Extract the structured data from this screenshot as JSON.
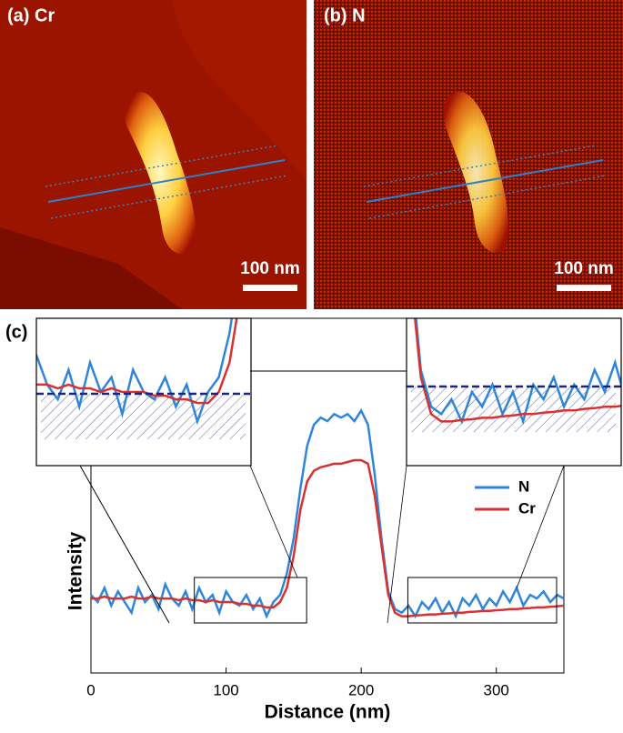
{
  "panels": [
    {
      "label": "(a) Cr",
      "scale_bar": "100 nm"
    },
    {
      "label": "(b) N",
      "scale_bar": "100 nm"
    },
    {
      "label": "(c)"
    }
  ],
  "chart_data": {
    "type": "line",
    "xlabel": "Distance (nm)",
    "ylabel": "Intensity",
    "xlim": [
      0,
      350
    ],
    "xticks": [
      0,
      100,
      200,
      300
    ],
    "ylim": [
      0,
      1
    ],
    "x": [
      0,
      5,
      10,
      15,
      20,
      25,
      30,
      35,
      40,
      45,
      50,
      55,
      60,
      65,
      70,
      75,
      80,
      85,
      90,
      95,
      100,
      105,
      110,
      115,
      120,
      125,
      130,
      135,
      140,
      145,
      150,
      155,
      160,
      165,
      170,
      175,
      180,
      185,
      190,
      195,
      200,
      205,
      210,
      215,
      220,
      225,
      230,
      235,
      240,
      245,
      250,
      255,
      260,
      265,
      270,
      275,
      280,
      285,
      290,
      295,
      300,
      305,
      310,
      315,
      320,
      325,
      330,
      335,
      340,
      345,
      350
    ],
    "series": [
      {
        "name": "N",
        "color": "#2f86d8",
        "values": [
          0.22,
          0.2,
          0.24,
          0.19,
          0.23,
          0.2,
          0.17,
          0.24,
          0.2,
          0.22,
          0.18,
          0.25,
          0.21,
          0.19,
          0.23,
          0.18,
          0.24,
          0.2,
          0.22,
          0.17,
          0.23,
          0.2,
          0.19,
          0.22,
          0.18,
          0.21,
          0.16,
          0.2,
          0.22,
          0.28,
          0.38,
          0.52,
          0.64,
          0.7,
          0.72,
          0.71,
          0.73,
          0.72,
          0.73,
          0.71,
          0.74,
          0.7,
          0.56,
          0.38,
          0.23,
          0.18,
          0.17,
          0.19,
          0.16,
          0.2,
          0.18,
          0.21,
          0.17,
          0.2,
          0.16,
          0.21,
          0.19,
          0.22,
          0.18,
          0.21,
          0.19,
          0.23,
          0.2,
          0.24,
          0.19,
          0.22,
          0.21,
          0.23,
          0.2,
          0.22,
          0.21
        ]
      },
      {
        "name": "Cr",
        "color": "#d93030",
        "values": [
          0.21,
          0.21,
          0.215,
          0.21,
          0.21,
          0.21,
          0.215,
          0.21,
          0.21,
          0.215,
          0.21,
          0.21,
          0.21,
          0.205,
          0.21,
          0.205,
          0.205,
          0.2,
          0.205,
          0.2,
          0.2,
          0.2,
          0.195,
          0.195,
          0.19,
          0.19,
          0.185,
          0.185,
          0.2,
          0.24,
          0.33,
          0.46,
          0.54,
          0.57,
          0.58,
          0.585,
          0.59,
          0.59,
          0.595,
          0.6,
          0.6,
          0.59,
          0.5,
          0.36,
          0.22,
          0.17,
          0.16,
          0.16,
          0.162,
          0.163,
          0.165,
          0.165,
          0.167,
          0.168,
          0.17,
          0.17,
          0.172,
          0.173,
          0.175,
          0.175,
          0.177,
          0.178,
          0.18,
          0.18,
          0.182,
          0.183,
          0.185,
          0.185,
          0.187,
          0.188,
          0.19
        ]
      }
    ]
  }
}
